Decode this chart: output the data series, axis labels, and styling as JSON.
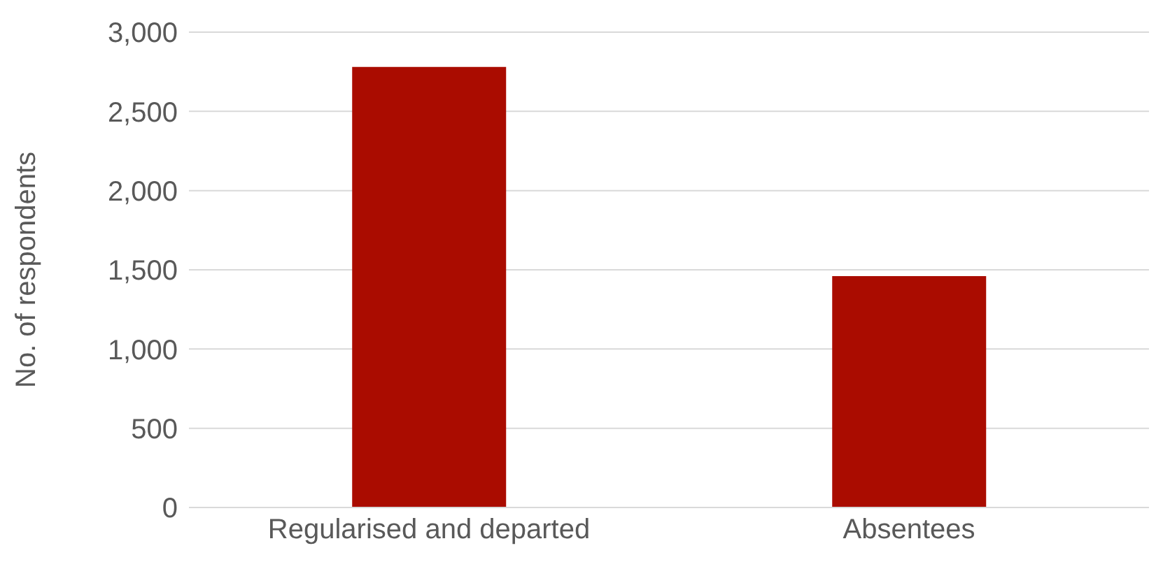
{
  "chart_data": {
    "type": "bar",
    "ylabel": "No. of respondents",
    "categories": [
      "Regularised and departed",
      "Absentees"
    ],
    "values": [
      2780,
      1460
    ],
    "color": "#aa0c00",
    "ylim": [
      0,
      3000
    ],
    "yticks": [
      {
        "value": 0,
        "label": "0"
      },
      {
        "value": 500,
        "label": "500"
      },
      {
        "value": 1000,
        "label": "1,000"
      },
      {
        "value": 1500,
        "label": "1,500"
      },
      {
        "value": 2000,
        "label": "2,000"
      },
      {
        "value": 2500,
        "label": "2,500"
      },
      {
        "value": 3000,
        "label": "3,000"
      }
    ],
    "grid": "y",
    "legend": false
  }
}
